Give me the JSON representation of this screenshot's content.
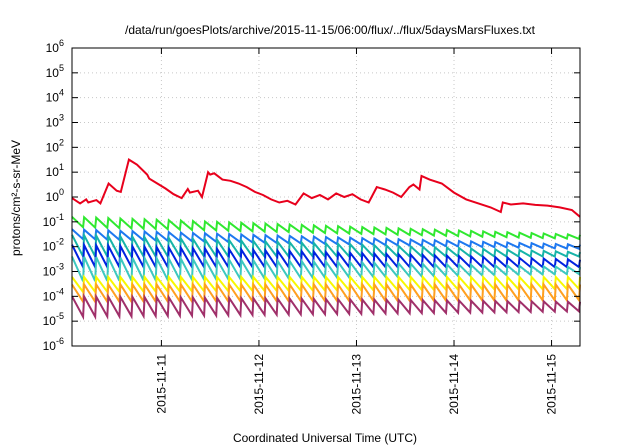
{
  "chart_data": {
    "type": "line",
    "title": "/data/run/goesPlots/archive/2015-11-15/06:00/flux/../flux/5daysMarsFluxes.txt",
    "xlabel": "Coordinated Universal Time (UTC)",
    "ylabel": "protons/cm²-s-sr-MeV",
    "yscale": "log",
    "grid": true,
    "xlim": [
      "2015-11-10 02:00",
      "2015-11-15 07:00"
    ],
    "ylim": [
      1e-06,
      1000000.0
    ],
    "x_ticks": [
      "2015-11-11",
      "2015-11-12",
      "2015-11-13",
      "2015-11-14",
      "2015-11-15"
    ],
    "y_ticks": [
      {
        "value": 1e-06,
        "base": "10",
        "exp": "-6"
      },
      {
        "value": 1e-05,
        "base": "10",
        "exp": "-5"
      },
      {
        "value": 0.0001,
        "base": "10",
        "exp": "-4"
      },
      {
        "value": 0.001,
        "base": "10",
        "exp": "-3"
      },
      {
        "value": 0.01,
        "base": "10",
        "exp": "-2"
      },
      {
        "value": 0.1,
        "base": "10",
        "exp": "-1"
      },
      {
        "value": 1,
        "base": "10",
        "exp": "0"
      },
      {
        "value": 10,
        "base": "10",
        "exp": "1"
      },
      {
        "value": 100,
        "base": "10",
        "exp": "2"
      },
      {
        "value": 1000,
        "base": "10",
        "exp": "3"
      },
      {
        "value": 10000,
        "base": "10",
        "exp": "4"
      },
      {
        "value": 100000,
        "base": "10",
        "exp": "5"
      },
      {
        "value": 1000000,
        "base": "10",
        "exp": "6"
      }
    ],
    "series": [
      {
        "color": "#e8001c",
        "x": [
          "2015-11-10 02:00",
          "2015-11-10 04:00",
          "2015-11-10 05:30",
          "2015-11-10 06:00",
          "2015-11-10 08:00",
          "2015-11-10 09:00",
          "2015-11-10 11:00",
          "2015-11-10 13:00",
          "2015-11-10 14:00",
          "2015-11-10 16:00",
          "2015-11-10 18:00",
          "2015-11-10 20:30",
          "2015-11-10 21:00",
          "2015-11-10 23:00",
          "2015-11-11 01:00",
          "2015-11-11 03:00",
          "2015-11-11 05:00",
          "2015-11-11 06:30",
          "2015-11-11 07:00",
          "2015-11-11 09:00",
          "2015-11-11 10:00",
          "2015-11-11 11:30",
          "2015-11-11 12:00",
          "2015-11-11 13:00",
          "2015-11-11 15:00",
          "2015-11-11 17:00",
          "2015-11-11 19:00",
          "2015-11-11 21:00",
          "2015-11-11 23:00",
          "2015-11-12 01:00",
          "2015-11-12 03:00",
          "2015-11-12 05:00",
          "2015-11-12 07:00",
          "2015-11-12 09:00",
          "2015-11-12 11:00",
          "2015-11-12 13:00",
          "2015-11-12 15:00",
          "2015-11-12 17:00",
          "2015-11-12 19:00",
          "2015-11-12 21:00",
          "2015-11-12 23:00",
          "2015-11-13 01:00",
          "2015-11-13 03:00",
          "2015-11-13 05:00",
          "2015-11-13 07:00",
          "2015-11-13 09:00",
          "2015-11-13 11:00",
          "2015-11-13 13:00",
          "2015-11-13 14:00",
          "2015-11-13 15:30",
          "2015-11-13 16:00",
          "2015-11-13 18:00",
          "2015-11-13 21:00",
          "2015-11-14 00:00",
          "2015-11-14 03:00",
          "2015-11-14 06:00",
          "2015-11-14 09:00",
          "2015-11-14 11:30",
          "2015-11-14 12:00",
          "2015-11-14 14:00",
          "2015-11-14 17:00",
          "2015-11-14 20:00",
          "2015-11-14 23:00",
          "2015-11-15 02:00",
          "2015-11-15 05:00",
          "2015-11-15 07:00"
        ],
        "y": [
          0.9,
          0.55,
          0.8,
          0.6,
          0.75,
          0.55,
          3.5,
          1.8,
          1.6,
          32,
          20,
          8,
          5.5,
          3.5,
          2.2,
          1.3,
          0.9,
          2.1,
          1.5,
          1.8,
          1.0,
          10,
          8,
          9,
          5,
          4.5,
          3.5,
          2.5,
          1.6,
          1.2,
          0.8,
          0.6,
          0.7,
          0.5,
          1.4,
          0.9,
          1.2,
          0.8,
          1.4,
          1.0,
          1.3,
          0.8,
          0.6,
          2.5,
          2.0,
          1.5,
          1.0,
          2.5,
          3.2,
          2.0,
          7,
          5,
          3.5,
          1.5,
          0.8,
          0.55,
          0.38,
          0.25,
          0.6,
          0.5,
          0.55,
          0.48,
          0.45,
          0.38,
          0.3,
          0.16
        ]
      },
      {
        "color": "#30e830",
        "x": [
          "2015-11-10 02:00",
          "2015-11-15 07:00"
        ],
        "y": [
          0.06,
          0.02
        ],
        "peak": [
          0.16,
          0.03
        ]
      },
      {
        "color": "#1e78f0",
        "x": [
          "2015-11-10 02:00",
          "2015-11-15 07:00"
        ],
        "y": [
          0.02,
          0.008
        ],
        "peak": [
          0.05,
          0.012
        ]
      },
      {
        "color": "#17b4a8",
        "x": [
          "2015-11-10 02:00",
          "2015-11-15 07:00"
        ],
        "y": [
          0.004,
          0.004
        ],
        "peak": [
          0.03,
          0.006
        ]
      },
      {
        "color": "#0022e0",
        "x": [
          "2015-11-10 02:00",
          "2015-11-15 07:00"
        ],
        "y": [
          0.0015,
          0.0015
        ],
        "peak": [
          0.012,
          0.003
        ]
      },
      {
        "color": "#3cc8c0",
        "x": [
          "2015-11-10 02:00",
          "2015-11-15 07:00"
        ],
        "y": [
          0.0004,
          0.0008
        ],
        "peak": [
          0.004,
          0.0015
        ]
      },
      {
        "color": "#f8f800",
        "x": [
          "2015-11-10 02:00",
          "2015-11-15 07:00"
        ],
        "y": [
          0.00015,
          0.0002
        ],
        "peak": [
          0.0006,
          0.0006
        ]
      },
      {
        "color": "#ffa020",
        "x": [
          "2015-11-10 02:00",
          "2015-11-15 07:00"
        ],
        "y": [
          6e-05,
          7e-05
        ],
        "peak": [
          0.0003,
          0.0003
        ]
      },
      {
        "color": "#a0306a",
        "x": [
          "2015-11-10 02:00",
          "2015-11-15 07:00"
        ],
        "y": [
          1.5e-05,
          2.5e-05
        ],
        "peak": [
          0.0001,
          6e-05
        ]
      }
    ]
  }
}
